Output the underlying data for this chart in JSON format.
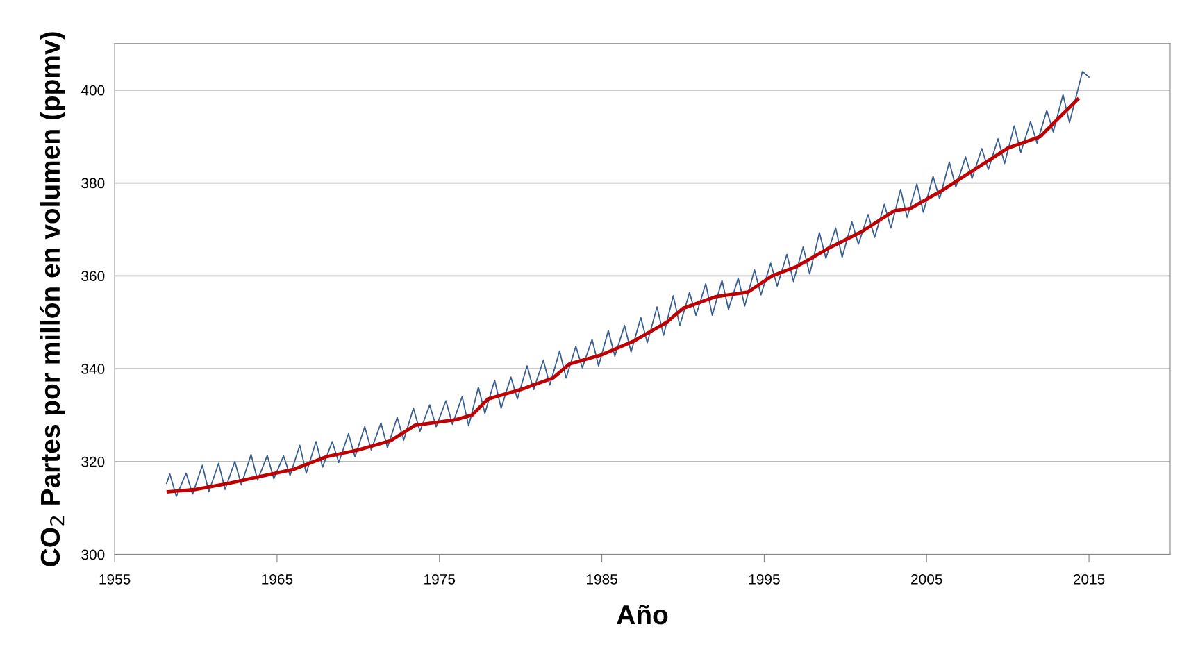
{
  "chart_data": {
    "type": "line",
    "xlabel": "Año",
    "ylabel": "CO$_{2}$ Partes por millón en volumen (ppmv)",
    "xlim": [
      1955,
      2020
    ],
    "xticks": [
      1955,
      1965,
      1975,
      1985,
      1995,
      2005,
      2015
    ],
    "ylim": [
      300,
      410
    ],
    "yticks": [
      300,
      320,
      340,
      360,
      380,
      400
    ],
    "grid": "y",
    "legend": false,
    "marker": "none",
    "line_style": "solid",
    "series": [
      {
        "color": "#3a5f92",
        "x": [
          1958.2,
          1958.4,
          1958.8,
          1959.4,
          1959.8,
          1960.4,
          1960.8,
          1961.4,
          1961.8,
          1962.4,
          1962.8,
          1963.4,
          1963.8,
          1964.4,
          1964.8,
          1965.4,
          1965.8,
          1966.4,
          1966.8,
          1967.4,
          1967.8,
          1968.4,
          1968.8,
          1969.4,
          1969.8,
          1970.4,
          1970.8,
          1971.4,
          1971.8,
          1972.4,
          1972.8,
          1973.4,
          1973.8,
          1974.4,
          1974.8,
          1975.4,
          1975.8,
          1976.4,
          1976.8,
          1977.4,
          1977.8,
          1978.4,
          1978.8,
          1979.4,
          1979.8,
          1980.4,
          1980.8,
          1981.4,
          1981.8,
          1982.4,
          1982.8,
          1983.4,
          1983.8,
          1984.4,
          1984.8,
          1985.4,
          1985.8,
          1986.4,
          1986.8,
          1987.4,
          1987.8,
          1988.4,
          1988.8,
          1989.4,
          1989.8,
          1990.4,
          1990.8,
          1991.4,
          1991.8,
          1992.4,
          1992.8,
          1993.4,
          1993.8,
          1994.4,
          1994.8,
          1995.4,
          1995.8,
          1996.4,
          1996.8,
          1997.4,
          1997.8,
          1998.4,
          1998.8,
          1999.4,
          1999.8,
          2000.4,
          2000.8,
          2001.4,
          2001.8,
          2002.4,
          2002.8,
          2003.4,
          2003.8,
          2004.4,
          2004.8,
          2005.4,
          2005.8,
          2006.4,
          2006.8,
          2007.4,
          2007.8,
          2008.4,
          2008.8,
          2009.4,
          2009.8,
          2010.4,
          2010.8,
          2011.4,
          2011.8,
          2012.4,
          2012.8,
          2013.4,
          2013.8,
          2014.6,
          2015.0
        ],
        "values": [
          315.3,
          317.3,
          312.5,
          317.5,
          313,
          319.2,
          313.5,
          319.6,
          314,
          320,
          315,
          321.5,
          316,
          321.3,
          316.3,
          321.2,
          317,
          323.5,
          317.5,
          324.3,
          318.8,
          324.3,
          319.8,
          326,
          321,
          327.5,
          322.5,
          328.3,
          323,
          329.5,
          324.6,
          331.5,
          326.5,
          332.2,
          327.5,
          333.1,
          328,
          334,
          327.7,
          336,
          330.4,
          337.5,
          331.5,
          338.2,
          333.5,
          340.6,
          335.5,
          341.8,
          336.5,
          343.8,
          338,
          344.8,
          340.2,
          346.3,
          340.6,
          348.2,
          342.7,
          349.3,
          343.6,
          351,
          345.6,
          353.3,
          347.2,
          355.7,
          349.3,
          356.4,
          351.5,
          358.3,
          351.5,
          359,
          352.8,
          359.5,
          353.5,
          361.3,
          355.9,
          362.7,
          357.8,
          364.6,
          358.8,
          366.2,
          360.4,
          369.3,
          363.8,
          370.3,
          364,
          371.6,
          366.8,
          373.2,
          368.3,
          375.4,
          370.3,
          378.6,
          372.6,
          379.8,
          373.7,
          381.4,
          376.6,
          384.5,
          379.1,
          385.6,
          381,
          387.4,
          382.9,
          389.5,
          384.2,
          392.3,
          386.6,
          393.2,
          388.6,
          395.6,
          391,
          399,
          393,
          404,
          402.8
        ]
      },
      {
        "color": "#c00000",
        "x": [
          1958.3,
          1960,
          1962,
          1964,
          1966,
          1968,
          1970,
          1972,
          1973.5,
          1976,
          1977,
          1978,
          1980,
          1982,
          1983,
          1985,
          1987,
          1989,
          1990,
          1992,
          1994,
          1995.5,
          1997,
          1999,
          2001,
          2003,
          2004,
          2006,
          2008,
          2010,
          2012,
          2013,
          2014.3
        ],
        "values": [
          313.5,
          314,
          315.3,
          316.8,
          318.3,
          321,
          322.5,
          324.5,
          327.8,
          329,
          330,
          333.5,
          335.5,
          338,
          341,
          343,
          346,
          350,
          353,
          355.5,
          356.5,
          360,
          362,
          366,
          369.5,
          374,
          374.5,
          378.5,
          383,
          387.5,
          390,
          393.5,
          398
        ]
      }
    ]
  }
}
